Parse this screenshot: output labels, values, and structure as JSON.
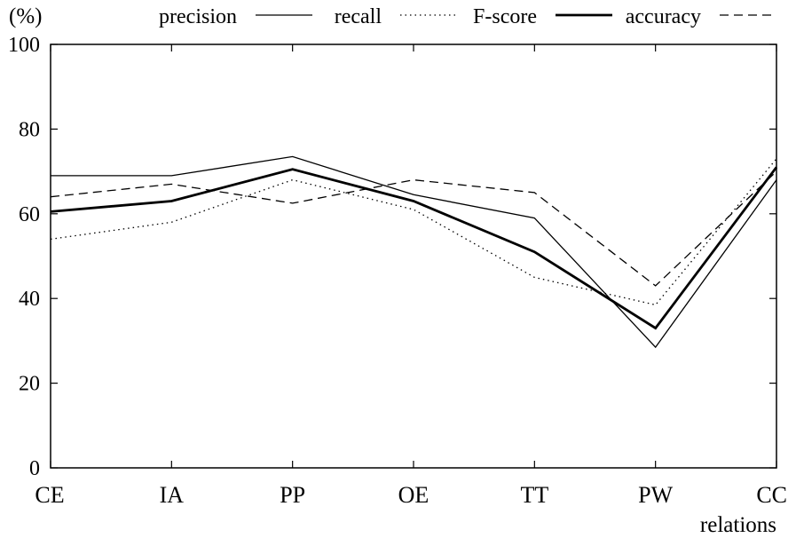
{
  "chart_data": {
    "type": "line",
    "title": "",
    "ylabel": "(%)",
    "xlabel": "relations",
    "ylim": [
      0,
      100
    ],
    "yticks": [
      0,
      20,
      40,
      60,
      80,
      100
    ],
    "yticklabels": [
      "0",
      "20",
      "40",
      "60",
      "80",
      "100"
    ],
    "categories": [
      "CE",
      "IA",
      "PP",
      "OE",
      "TT",
      "PW",
      "CC"
    ],
    "grid": false,
    "legend_position": "top",
    "series": [
      {
        "name": "precision",
        "style": "thin-solid",
        "values": [
          69,
          69,
          73.5,
          64.5,
          59,
          28.5,
          68
        ]
      },
      {
        "name": "recall",
        "style": "dotted",
        "values": [
          54,
          58,
          68,
          61,
          45,
          38.5,
          73
        ]
      },
      {
        "name": "F-score",
        "style": "thick-solid",
        "values": [
          60.5,
          63,
          70.5,
          63,
          51,
          33,
          71
        ]
      },
      {
        "name": "accuracy",
        "style": "dashed",
        "values": [
          64,
          67,
          62.5,
          68,
          65,
          43,
          70
        ]
      }
    ]
  }
}
